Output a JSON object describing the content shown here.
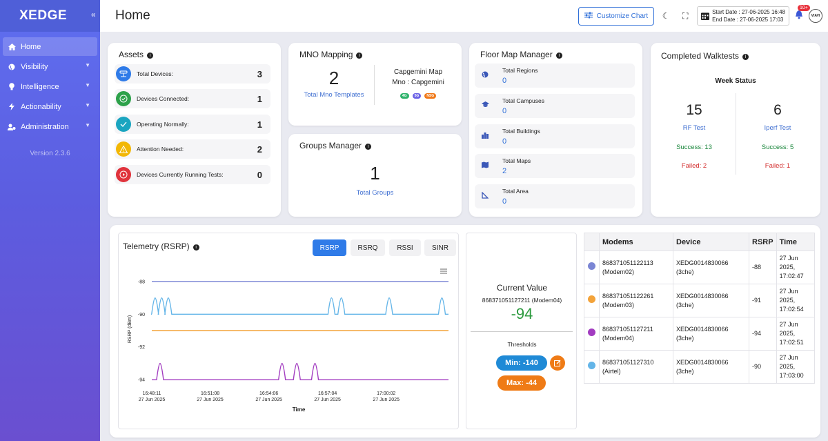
{
  "brand": "XEDGE",
  "sidebar": {
    "items": [
      {
        "label": "Home",
        "icon": "home-icon"
      },
      {
        "label": "Visibility",
        "icon": "globe-icon"
      },
      {
        "label": "Intelligence",
        "icon": "bulb-icon"
      },
      {
        "label": "Actionability",
        "icon": "bolt-icon"
      },
      {
        "label": "Administration",
        "icon": "users-cog-icon"
      }
    ],
    "version": "Version 2.3.6"
  },
  "header": {
    "title": "Home",
    "customize_label": "Customize Chart",
    "start_date": "Start Date : 27-06-2025 16:48",
    "end_date": "End Date :  27-06-2025 17:03",
    "notif_badge": "10+",
    "logo": "VIAVI"
  },
  "assets": {
    "title": "Assets",
    "rows": [
      {
        "label": "Total Devices:",
        "value": "3",
        "color": "#2f7be8"
      },
      {
        "label": "Devices Connected:",
        "value": "1",
        "color": "#2da14a"
      },
      {
        "label": "Operating Normally:",
        "value": "1",
        "color": "#1ba5c0"
      },
      {
        "label": "Attention Needed:",
        "value": "2",
        "color": "#f2b705"
      },
      {
        "label": "Devices Currently Running Tests:",
        "value": "0",
        "color": "#e0333c"
      }
    ]
  },
  "mno": {
    "title": "MNO Mapping",
    "count": "2",
    "count_label": "Total Mno Templates",
    "map_name": "Capgemini Map",
    "mno_line": "Mno : Capgemini",
    "tags": [
      {
        "label": "4G",
        "color": "#2fb36b"
      },
      {
        "label": "5G",
        "color": "#6c63e6"
      },
      {
        "label": "NSG",
        "color": "#f07a1a"
      }
    ]
  },
  "groups": {
    "title": "Groups Manager",
    "count": "1",
    "count_label": "Total Groups"
  },
  "floor": {
    "title": "Floor Map Manager",
    "rows": [
      {
        "label": "Total Regions",
        "value": "0",
        "icon": "globe-icon"
      },
      {
        "label": "Total Campuses",
        "value": "0",
        "icon": "graduation-cap-icon"
      },
      {
        "label": "Total Buildings",
        "value": "0",
        "icon": "buildings-icon"
      },
      {
        "label": "Total Maps",
        "value": "2",
        "icon": "map-icon"
      },
      {
        "label": "Total Area",
        "value": "0",
        "icon": "area-icon"
      }
    ]
  },
  "walktests": {
    "title": "Completed Walktests",
    "subtitle": "Week Status",
    "rf": {
      "count": "15",
      "label": "RF Test",
      "success": "Success: 13",
      "failed": "Failed: 2"
    },
    "iperf": {
      "count": "6",
      "label": "Iperf Test",
      "success": "Success: 5",
      "failed": "Failed: 1"
    }
  },
  "telemetry": {
    "title": "Telemetry (RSRP)",
    "tabs": [
      "RSRP",
      "RSRQ",
      "RSSI",
      "SINR"
    ],
    "active_tab": "RSRP"
  },
  "chart_data": {
    "type": "line",
    "title": "",
    "xlabel": "Time",
    "ylabel": "RSRP (dBm)",
    "ylim": [
      -94.5,
      -87.5
    ],
    "y_ticks": [
      -88,
      -90,
      -92,
      -94
    ],
    "x_ticks": [
      {
        "time": "16:48:11",
        "date": "27 Jun 2025"
      },
      {
        "time": "16:51:08",
        "date": "27 Jun 2025"
      },
      {
        "time": "16:54:06",
        "date": "27 Jun 2025"
      },
      {
        "time": "16:57:04",
        "date": "27 Jun 2025"
      },
      {
        "time": "17:00:02",
        "date": "27 Jun 2025"
      }
    ],
    "x_range_seconds": [
      0,
      900
    ],
    "x_tick_seconds": [
      0,
      177,
      355,
      533,
      711
    ],
    "grid": false,
    "series": [
      {
        "color": "#7b86d4",
        "base": -88,
        "spikes": []
      },
      {
        "color": "#64b5e8",
        "base": -90,
        "spike_to": -89,
        "spikes": [
          10,
          30,
          50,
          545,
          575,
          720,
          880
        ]
      },
      {
        "color": "#f3a33a",
        "base": -91,
        "spikes": []
      },
      {
        "color": "#a23cc0",
        "base": -94,
        "spike_to": -93,
        "spikes": [
          25,
          395,
          440,
          495
        ]
      }
    ]
  },
  "current": {
    "title": "Current Value",
    "device": "868371051127211 (Modem04)",
    "value": "-94",
    "thresholds_label": "Thresholds",
    "min": "Min: -140",
    "max": "Max: -44"
  },
  "table": {
    "headers": [
      "Modems",
      "Device",
      "RSRP",
      "Time"
    ],
    "rows": [
      {
        "color": "#7b86d4",
        "modem": "868371051122113",
        "modem_sub": "(Modem02)",
        "device": "XEDG0014830066",
        "device_sub": "(3che)",
        "rsrp": "-88",
        "time1": "27 Jun",
        "time2": "2025,",
        "time3": "17:02:47"
      },
      {
        "color": "#f3a33a",
        "modem": "868371051122261",
        "modem_sub": "(Modem03)",
        "device": "XEDG0014830066",
        "device_sub": "(3che)",
        "rsrp": "-91",
        "time1": "27 Jun",
        "time2": "2025,",
        "time3": "17:02:54"
      },
      {
        "color": "#a23cc0",
        "modem": "868371051127211",
        "modem_sub": "(Modem04)",
        "device": "XEDG0014830066",
        "device_sub": "(3che)",
        "rsrp": "-94",
        "time1": "27 Jun",
        "time2": "2025,",
        "time3": "17:02:51"
      },
      {
        "color": "#64b5e8",
        "modem": "868371051127310",
        "modem_sub": "(Airtel)",
        "device": "XEDG0014830066",
        "device_sub": "(3che)",
        "rsrp": "-90",
        "time1": "27 Jun",
        "time2": "2025,",
        "time3": "17:03:00"
      }
    ]
  }
}
